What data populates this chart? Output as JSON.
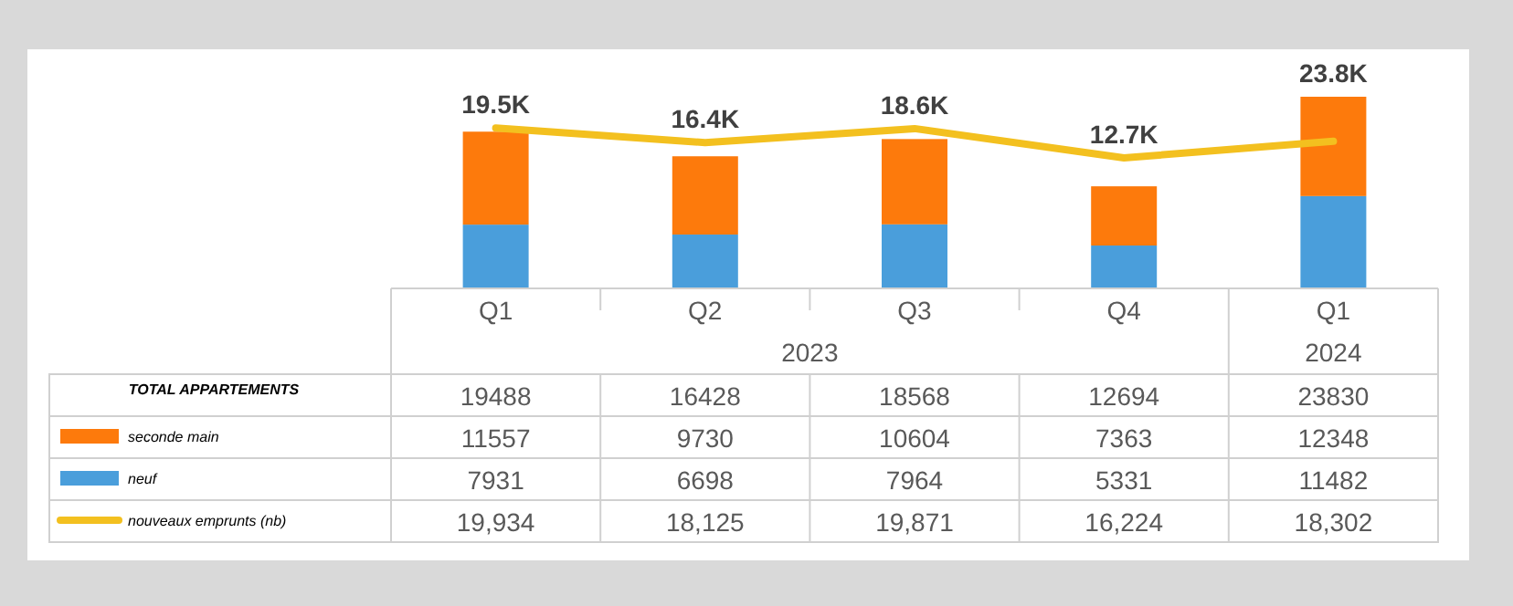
{
  "chart_data": {
    "type": "bar",
    "stacked": true,
    "categories": [
      "Q1",
      "Q2",
      "Q3",
      "Q4",
      "Q1"
    ],
    "series": [
      {
        "name": "neuf",
        "color": "#4a9edb",
        "values": [
          7931,
          6698,
          7964,
          5331,
          11482
        ],
        "value_labels": [
          "7931",
          "6698",
          "7964",
          "5331",
          "11482"
        ]
      },
      {
        "name": "seconde main",
        "color": "#fd7a0c",
        "values": [
          11557,
          9730,
          10604,
          7363,
          12348
        ],
        "value_labels": [
          "11557",
          "9730",
          "10604",
          "7363",
          "12348"
        ]
      },
      {
        "name": "nouveaux emprunts (nb)",
        "type": "line",
        "color": "#f3c01f",
        "values": [
          19934,
          18125,
          19871,
          16224,
          18302
        ],
        "value_labels": [
          "19,934",
          "18,125",
          "19,871",
          "16,224",
          "18,302"
        ]
      }
    ],
    "totals": [
      "19.5K",
      "16.4K",
      "18.6K",
      "12.7K",
      "23.8K"
    ],
    "legend": "bottom",
    "grid": false,
    "annotations": [
      "2023",
      "2024",
      "TOTAL APPARTEMENTS",
      "19488",
      "16428",
      "18568",
      "12694",
      "23830"
    ]
  }
}
